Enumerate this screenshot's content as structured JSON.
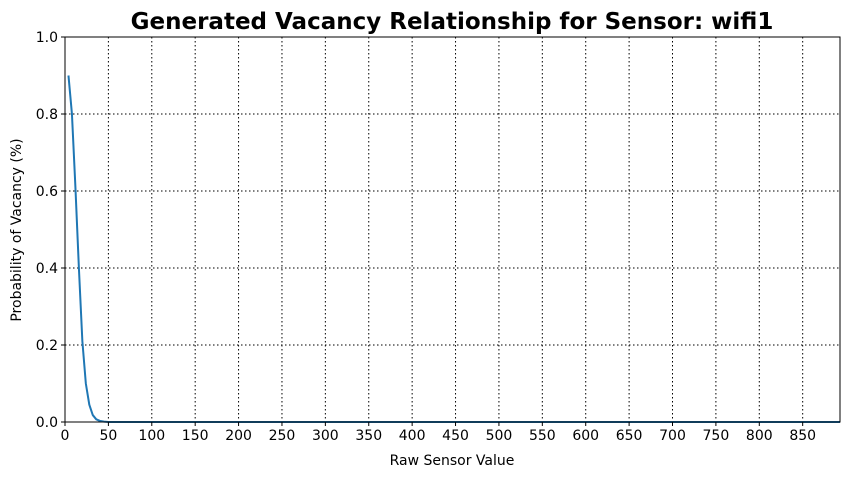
{
  "chart_data": {
    "type": "line",
    "title": "Generated Vacancy Relationship for Sensor: wifi1",
    "xlabel": "Raw Sensor Value",
    "ylabel": "Probability of Vacancy (%)",
    "xlim": [
      0,
      893
    ],
    "ylim": [
      0,
      1.0
    ],
    "xticks": [
      0,
      50,
      100,
      150,
      200,
      250,
      300,
      350,
      400,
      450,
      500,
      550,
      600,
      650,
      700,
      750,
      800,
      850
    ],
    "yticks": [
      "0.0",
      "0.2",
      "0.4",
      "0.6",
      "0.8",
      "1.0"
    ],
    "grid": true,
    "grid_style": "dotted",
    "series": [
      {
        "color": "#1f77b4",
        "x": [
          4,
          8,
          12,
          16,
          20,
          24,
          28,
          32,
          36,
          40,
          45,
          50,
          100,
          200,
          400,
          600,
          800,
          893
        ],
        "y": [
          0.9,
          0.8,
          0.61,
          0.4,
          0.21,
          0.1,
          0.045,
          0.018,
          0.007,
          0.003,
          0.001,
          0.0,
          0.0,
          0.0,
          0.0,
          0.0,
          0.0,
          0.0
        ]
      }
    ]
  }
}
